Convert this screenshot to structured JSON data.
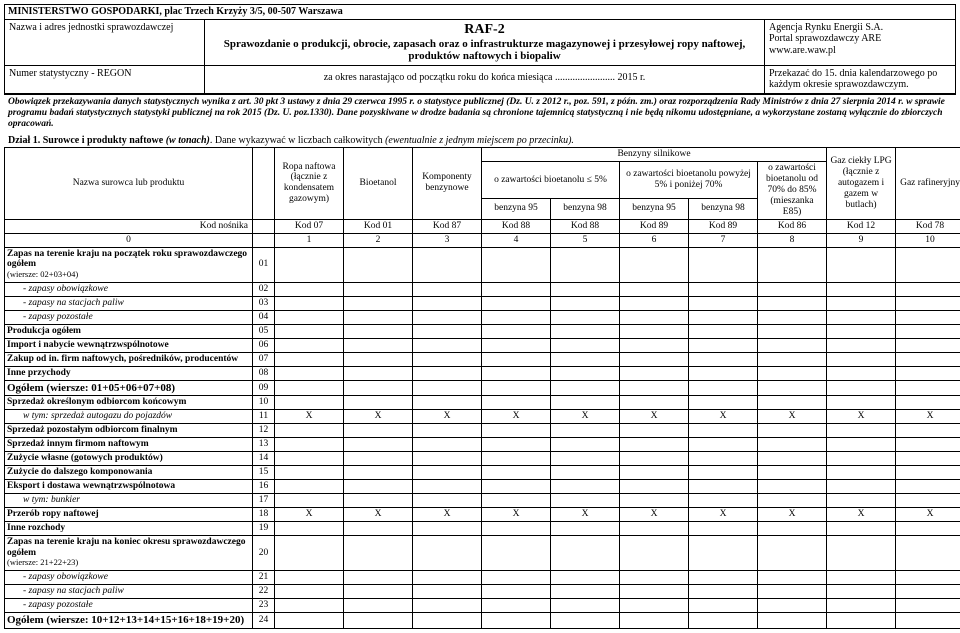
{
  "header": {
    "ministry": "MINISTERSTWO GOSPODARKI, plac Trzech Krzyży 3/5, 00-507 Warszawa",
    "unit_label": "Nazwa i adres jednostki sprawozdawczej",
    "form_code": "RAF-2",
    "form_title": "Sprawozdanie o produkcji, obrocie, zapasach oraz o infrastrukturze magazynowej i przesyłowej ropy naftowej, produktów naftowych i biopaliw",
    "agency1": "Agencja Rynku Energii S.A.",
    "agency2": "Portal sprawozdawczy ARE",
    "agency3": "www.are.waw.pl",
    "regon_label": "Numer statystyczny - REGON",
    "period": "za okres narastająco od początku roku do końca miesiąca ........................ 2015 r.",
    "deadline": "Przekazać do 15. dnia kalendarzowego po każdym okresie sprawozdawczym."
  },
  "legal": "Obowiązek przekazywania danych statystycznych wynika z art. 30 pkt 3 ustawy z dnia 29 czerwca 1995 r. o statystyce publicznej (Dz. U. z 2012 r., poz. 591, z późn. zm.) oraz rozporządzenia Rady Ministrów z dnia 27 sierpnia 2014 r. w sprawie programu badań statystycznych statystyki publicznej na rok 2015 (Dz. U. poz.1330). Dane pozyskiwane w drodze badania są chronione tajemnicą statystyczną i nie będą nikomu udostępniane, a wykorzystane zostaną wyłącznie do zbiorczych opracowań.",
  "section1": {
    "prefix": "Dział 1. Surowce i produkty naftowe ",
    "paren1": "(w tonach)",
    "mid": ". Dane wykazywać w liczbach całkowitych ",
    "paren2": "(ewentualnie z jednym miejscem po przecinku)."
  },
  "cols": {
    "name": "Nazwa surowca lub produktu",
    "c1": "Ropa naftowa (łącznie z kondensatem gazowym)",
    "c2": "Bioetanol",
    "c3": "Komponenty benzynowe",
    "benz_group": "Benzyny silnikowe",
    "c4g": "o zawartości bioetanolu ≤ 5%",
    "c4": "benzyna 95",
    "c5": "benzyna 98",
    "c6g": "o zawartości bioetanolu powyżej 5% i poniżej 70%",
    "c6": "benzyna 95",
    "c7": "benzyna 98",
    "c8": "o zawartości bioetanolu od 70% do 85% (mieszanka E85)",
    "c9": "Gaz ciekły LPG (łącznie z autogazem i gazem w butlach)",
    "c10": "Gaz rafineryjny",
    "kod_nosnika": "Kod nośnika",
    "k1": "Kod 07",
    "k2": "Kod 01",
    "k3": "Kod 87",
    "k4": "Kod 88",
    "k5": "Kod 88",
    "k6": "Kod 89",
    "k7": "Kod 89",
    "k8": "Kod 86",
    "k9": "Kod 12",
    "k10": "Kod 78",
    "n0": "0",
    "n1": "1",
    "n2": "2",
    "n3": "3",
    "n4": "4",
    "n5": "5",
    "n6": "6",
    "n7": "7",
    "n8": "8",
    "n9": "9",
    "n10": "10"
  },
  "rows": [
    {
      "code": "01",
      "name": "Zapas na terenie kraju na początek roku sprawozdawczego ogółem",
      "sub": "(wiersze: 02+03+04)",
      "bold": true,
      "small": true
    },
    {
      "code": "02",
      "name": "- zapasy obowiązkowe",
      "indent": true
    },
    {
      "code": "03",
      "name": "- zapasy na stacjach paliw",
      "indent": true
    },
    {
      "code": "04",
      "name": "- zapasy pozostałe",
      "indent": true
    },
    {
      "code": "05",
      "name": "Produkcja ogółem",
      "bold": true
    },
    {
      "code": "06",
      "name": "Import i nabycie wewnątrzwspólnotowe",
      "bold": true
    },
    {
      "code": "07",
      "name": "Zakup od in. firm naftowych, pośredników, producentów",
      "bold": true
    },
    {
      "code": "08",
      "name": "Inne przychody",
      "bold": true
    },
    {
      "code": "09",
      "name": "Ogółem (wiersze: 01+05+06+07+08)",
      "bold": true,
      "big": true
    },
    {
      "code": "10",
      "name": "Sprzedaż określonym odbiorcom końcowym",
      "bold": true
    },
    {
      "code": "11",
      "name": "w tym: sprzedaż autogazu do pojazdów",
      "indent": true,
      "italic": true,
      "x": true
    },
    {
      "code": "12",
      "name": "Sprzedaż pozostałym odbiorcom finalnym",
      "bold": true
    },
    {
      "code": "13",
      "name": "Sprzedaż innym firmom naftowym",
      "bold": true
    },
    {
      "code": "14",
      "name": "Zużycie własne (gotowych produktów)",
      "bold": true
    },
    {
      "code": "15",
      "name": "Zużycie do dalszego komponowania",
      "bold": true
    },
    {
      "code": "16",
      "name": "Eksport i dostawa wewnątrzwspólnotowa",
      "bold": true
    },
    {
      "code": "17",
      "name": "w tym: bunkier",
      "indent": true,
      "italic": true
    },
    {
      "code": "18",
      "name": "Przerób ropy naftowej",
      "bold": true,
      "x": true
    },
    {
      "code": "19",
      "name": "Inne rozchody",
      "bold": true
    },
    {
      "code": "20",
      "name": "Zapas na terenie kraju na koniec okresu sprawozdawczego ogółem",
      "sub": "(wiersze: 21+22+23)",
      "bold": true,
      "small": true
    },
    {
      "code": "21",
      "name": "- zapasy obowiązkowe",
      "indent": true
    },
    {
      "code": "22",
      "name": "- zapasy na stacjach paliw",
      "indent": true
    },
    {
      "code": "23",
      "name": "- zapasy pozostałe",
      "indent": true
    },
    {
      "code": "24",
      "name": "Ogółem (wiersze: 10+12+13+14+15+16+18+19+20)",
      "bold": true,
      "big": true
    }
  ],
  "x_mark": "X"
}
